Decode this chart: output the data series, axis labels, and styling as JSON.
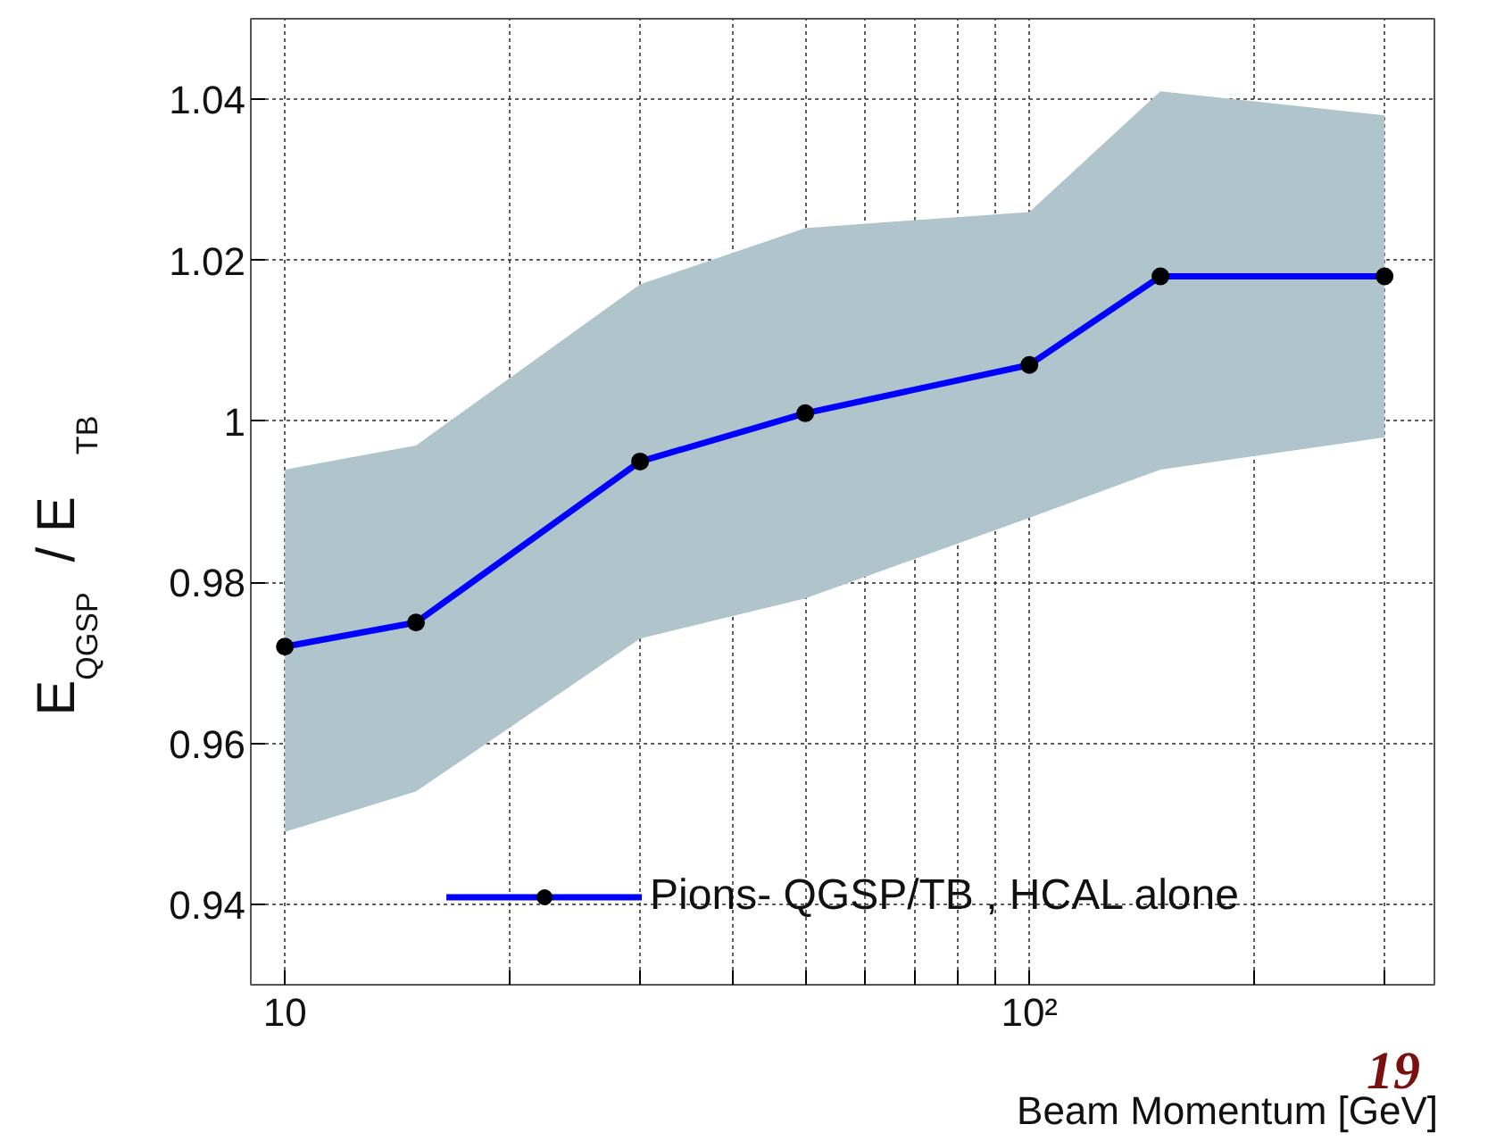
{
  "chart_data": {
    "type": "line",
    "xlabel": "Beam Momentum [GeV]",
    "ylabel": "E$_{QGSP}$ / E$_{TB}$",
    "log": "x",
    "x": [
      10,
      15,
      30,
      50,
      100,
      150,
      300
    ],
    "series": [
      {
        "name": "Pions- QGSP/TB , HCAL alone",
        "color": "#0000ff",
        "values": [
          0.972,
          0.975,
          0.995,
          1.001,
          1.007,
          1.018,
          1.018
        ],
        "lower": [
          0.949,
          0.954,
          0.973,
          0.978,
          0.988,
          0.994,
          0.998
        ],
        "upper": [
          0.994,
          0.997,
          1.017,
          1.024,
          1.026,
          1.041,
          1.038
        ]
      }
    ],
    "xlim": [
      9,
      350
    ],
    "ylim": [
      0.93,
      1.05
    ],
    "xticks": [
      10,
      {
        "value": 20,
        "label": null
      },
      {
        "value": 30,
        "label": null
      },
      {
        "value": 40,
        "label": null
      },
      {
        "value": 50,
        "label": null
      },
      {
        "value": 60,
        "label": null
      },
      {
        "value": 70,
        "label": null
      },
      {
        "value": 80,
        "label": null
      },
      {
        "value": 90,
        "label": null
      },
      {
        "value": 100,
        "label": "10²"
      },
      {
        "value": 200,
        "label": null
      },
      {
        "value": 300,
        "label": null
      }
    ],
    "yticks": [
      0.94,
      0.96,
      0.98,
      1,
      1.02,
      1.04
    ],
    "grid": true,
    "legend": "bottom",
    "marker": "circle",
    "line_style": "solid",
    "annotations": [
      "19"
    ]
  }
}
